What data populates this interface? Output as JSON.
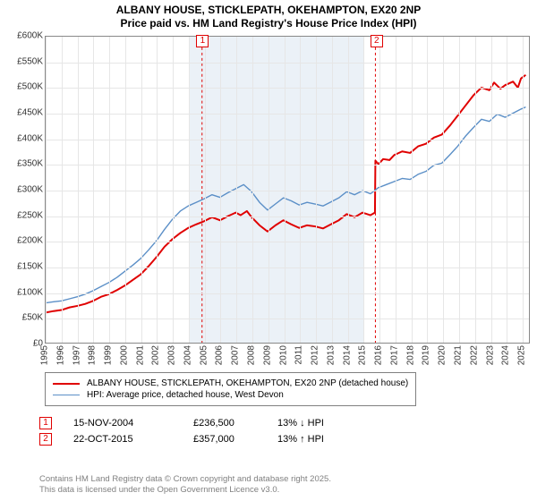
{
  "title": {
    "line1": "ALBANY HOUSE, STICKLEPATH, OKEHAMPTON, EX20 2NP",
    "line2": "Price paid vs. HM Land Registry's House Price Index (HPI)"
  },
  "chart": {
    "type": "line",
    "ylim": [
      0,
      600000
    ],
    "ytick_step": 50000,
    "yticks": [
      "£0",
      "£50K",
      "£100K",
      "£150K",
      "£200K",
      "£250K",
      "£300K",
      "£350K",
      "£400K",
      "£450K",
      "£500K",
      "£550K",
      "£600K"
    ],
    "xlim": [
      1995,
      2025.5
    ],
    "xticks": [
      1995,
      1996,
      1997,
      1998,
      1999,
      2000,
      2001,
      2002,
      2003,
      2004,
      2005,
      2006,
      2007,
      2008,
      2009,
      2010,
      2011,
      2012,
      2013,
      2014,
      2015,
      2016,
      2017,
      2018,
      2019,
      2020,
      2021,
      2022,
      2023,
      2024,
      2025
    ],
    "background": "#ffffff",
    "grid_color": "#e6e6e6",
    "shaded_regions": [
      {
        "start": 2004.0,
        "end": 2015.0,
        "color": "#dbe6f0"
      }
    ],
    "markers": [
      {
        "id": "1",
        "x": 2004.87
      },
      {
        "id": "2",
        "x": 2015.81
      }
    ],
    "series": [
      {
        "name": "ALBANY HOUSE, STICKLEPATH, OKEHAMPTON, EX20 2NP (detached house)",
        "color": "#e00000",
        "width": 2,
        "data": [
          [
            1995.0,
            59000
          ],
          [
            1995.5,
            62000
          ],
          [
            1996.0,
            64000
          ],
          [
            1996.5,
            69000
          ],
          [
            1997.0,
            72000
          ],
          [
            1997.5,
            76000
          ],
          [
            1998.0,
            82000
          ],
          [
            1998.5,
            90000
          ],
          [
            1999.0,
            95000
          ],
          [
            1999.5,
            103000
          ],
          [
            2000.0,
            112000
          ],
          [
            2000.5,
            123000
          ],
          [
            2001.0,
            134000
          ],
          [
            2001.5,
            150000
          ],
          [
            2002.0,
            168000
          ],
          [
            2002.5,
            188000
          ],
          [
            2003.0,
            203000
          ],
          [
            2003.5,
            215000
          ],
          [
            2004.0,
            225000
          ],
          [
            2004.5,
            232000
          ],
          [
            2004.87,
            236500
          ],
          [
            2005.0,
            238000
          ],
          [
            2005.5,
            246000
          ],
          [
            2006.0,
            240000
          ],
          [
            2006.5,
            248000
          ],
          [
            2007.0,
            255000
          ],
          [
            2007.3,
            250000
          ],
          [
            2007.7,
            258000
          ],
          [
            2008.0,
            246000
          ],
          [
            2008.5,
            230000
          ],
          [
            2009.0,
            218000
          ],
          [
            2009.5,
            230000
          ],
          [
            2010.0,
            240000
          ],
          [
            2010.5,
            232000
          ],
          [
            2011.0,
            225000
          ],
          [
            2011.5,
            230000
          ],
          [
            2012.0,
            228000
          ],
          [
            2012.5,
            224000
          ],
          [
            2013.0,
            232000
          ],
          [
            2013.5,
            240000
          ],
          [
            2014.0,
            252000
          ],
          [
            2014.5,
            246000
          ],
          [
            2015.0,
            255000
          ],
          [
            2015.5,
            250000
          ],
          [
            2015.78,
            255000
          ],
          [
            2015.81,
            357000
          ],
          [
            2016.0,
            350000
          ],
          [
            2016.3,
            360000
          ],
          [
            2016.7,
            358000
          ],
          [
            2017.0,
            368000
          ],
          [
            2017.5,
            375000
          ],
          [
            2018.0,
            372000
          ],
          [
            2018.5,
            385000
          ],
          [
            2019.0,
            390000
          ],
          [
            2019.5,
            402000
          ],
          [
            2020.0,
            408000
          ],
          [
            2020.5,
            425000
          ],
          [
            2021.0,
            445000
          ],
          [
            2021.5,
            465000
          ],
          [
            2022.0,
            485000
          ],
          [
            2022.5,
            500000
          ],
          [
            2023.0,
            495000
          ],
          [
            2023.3,
            510000
          ],
          [
            2023.7,
            498000
          ],
          [
            2024.0,
            505000
          ],
          [
            2024.5,
            512000
          ],
          [
            2024.8,
            500000
          ],
          [
            2025.0,
            518000
          ],
          [
            2025.3,
            525000
          ]
        ]
      },
      {
        "name": "HPI: Average price, detached house, West Devon",
        "color": "#5b8fc7",
        "width": 1.4,
        "data": [
          [
            1995.0,
            78000
          ],
          [
            1995.5,
            80000
          ],
          [
            1996.0,
            82000
          ],
          [
            1996.5,
            86000
          ],
          [
            1997.0,
            90000
          ],
          [
            1997.5,
            95000
          ],
          [
            1998.0,
            102000
          ],
          [
            1998.5,
            110000
          ],
          [
            1999.0,
            118000
          ],
          [
            1999.5,
            128000
          ],
          [
            2000.0,
            140000
          ],
          [
            2000.5,
            152000
          ],
          [
            2001.0,
            165000
          ],
          [
            2001.5,
            182000
          ],
          [
            2002.0,
            200000
          ],
          [
            2002.5,
            222000
          ],
          [
            2003.0,
            242000
          ],
          [
            2003.5,
            258000
          ],
          [
            2004.0,
            268000
          ],
          [
            2004.5,
            275000
          ],
          [
            2005.0,
            282000
          ],
          [
            2005.5,
            290000
          ],
          [
            2006.0,
            285000
          ],
          [
            2006.5,
            294000
          ],
          [
            2007.0,
            302000
          ],
          [
            2007.5,
            310000
          ],
          [
            2008.0,
            296000
          ],
          [
            2008.5,
            275000
          ],
          [
            2009.0,
            260000
          ],
          [
            2009.5,
            272000
          ],
          [
            2010.0,
            284000
          ],
          [
            2010.5,
            278000
          ],
          [
            2011.0,
            270000
          ],
          [
            2011.5,
            275000
          ],
          [
            2012.0,
            272000
          ],
          [
            2012.5,
            268000
          ],
          [
            2013.0,
            276000
          ],
          [
            2013.5,
            284000
          ],
          [
            2014.0,
            296000
          ],
          [
            2014.5,
            290000
          ],
          [
            2015.0,
            298000
          ],
          [
            2015.5,
            292000
          ],
          [
            2016.0,
            304000
          ],
          [
            2016.5,
            310000
          ],
          [
            2017.0,
            316000
          ],
          [
            2017.5,
            322000
          ],
          [
            2018.0,
            320000
          ],
          [
            2018.5,
            330000
          ],
          [
            2019.0,
            336000
          ],
          [
            2019.5,
            348000
          ],
          [
            2020.0,
            352000
          ],
          [
            2020.5,
            368000
          ],
          [
            2021.0,
            385000
          ],
          [
            2021.5,
            405000
          ],
          [
            2022.0,
            422000
          ],
          [
            2022.5,
            438000
          ],
          [
            2023.0,
            434000
          ],
          [
            2023.5,
            448000
          ],
          [
            2024.0,
            442000
          ],
          [
            2024.5,
            450000
          ],
          [
            2025.0,
            458000
          ],
          [
            2025.3,
            462000
          ]
        ]
      }
    ]
  },
  "legend": {
    "items": [
      {
        "color": "#e00000",
        "width": 2,
        "label": "ALBANY HOUSE, STICKLEPATH, OKEHAMPTON, EX20 2NP (detached house)"
      },
      {
        "color": "#5b8fc7",
        "width": 1.4,
        "label": "HPI: Average price, detached house, West Devon"
      }
    ]
  },
  "events": [
    {
      "id": "1",
      "date": "15-NOV-2004",
      "price": "£236,500",
      "pct": "13% ↓ HPI"
    },
    {
      "id": "2",
      "date": "22-OCT-2015",
      "price": "£357,000",
      "pct": "13% ↑ HPI"
    }
  ],
  "footer": {
    "line1": "Contains HM Land Registry data © Crown copyright and database right 2025.",
    "line2": "This data is licensed under the Open Government Licence v3.0."
  }
}
